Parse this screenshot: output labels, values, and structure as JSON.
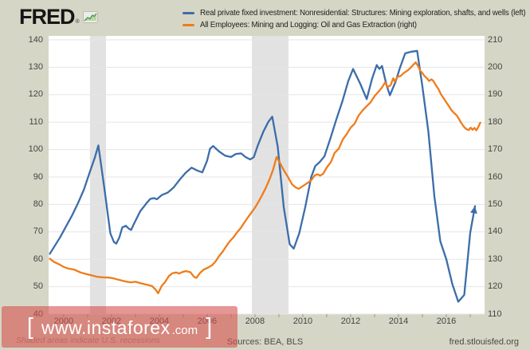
{
  "header": {
    "logo": "FRED",
    "registered": "®"
  },
  "legend": {
    "items": [
      {
        "label": "Real private fixed investment: Nonresidential: Structures: Mining exploration, shafts, and wells (left)",
        "color": "#3c6da9"
      },
      {
        "label": "All Employees: Mining and Logging: Oil and Gas Extraction (right)",
        "color": "#ef7c1b"
      }
    ]
  },
  "footer": {
    "recession_note": "Shaded areas indicate U.S. recessions",
    "sources": "Sources: BEA, BLS",
    "site": "fred.stlouisfed.org"
  },
  "watermark": {
    "open_bracket": "[",
    "text": "www.instaforex",
    "suffix": ".com",
    "close_bracket": "]"
  },
  "colors": {
    "background": "#d6d6c6",
    "plot_background": "#ffffff",
    "recession_band": "#e2e2e2",
    "gridline": "#e5e5e5",
    "tick_mark": "#999999",
    "axis_text": "#444444",
    "series_blue": "#3c6da9",
    "series_orange": "#ef7c1b",
    "watermark_bg": "rgba(213,82,78,0.60)",
    "watermark_text": "#ffffff"
  },
  "chart_data": {
    "type": "line",
    "title": "",
    "x_axis": {
      "min": 1999.37,
      "max": 2017.6,
      "label_years": [
        2000,
        2002,
        2004,
        2006,
        2008,
        2010,
        2012,
        2014,
        2016
      ],
      "tick_years": [
        2000,
        2001,
        2002,
        2003,
        2004,
        2005,
        2006,
        2007,
        2008,
        2009,
        2010,
        2011,
        2012,
        2013,
        2014,
        2015,
        2016,
        2017
      ]
    },
    "left_axis": {
      "min": 40,
      "max": 140,
      "step": 10,
      "ticks": [
        140,
        130,
        120,
        110,
        100,
        90,
        80,
        70,
        60,
        50,
        40
      ]
    },
    "right_axis": {
      "min": 110,
      "max": 210,
      "step": 10,
      "ticks": [
        210,
        200,
        190,
        180,
        170,
        160,
        150,
        140,
        130,
        120,
        110
      ]
    },
    "recession_bands": [
      [
        2001.1,
        2001.77
      ],
      [
        2007.87,
        2009.4
      ]
    ],
    "grid": true,
    "legend_position": "top",
    "series": [
      {
        "name": "Real private fixed investment: Nonresidential: Structures: Mining exploration, shafts, and wells",
        "axis": "left",
        "color": "#3c6da9",
        "arrow_end": true,
        "points": [
          [
            1999.42,
            62.0
          ],
          [
            1999.6,
            64.5
          ],
          [
            1999.85,
            68.0
          ],
          [
            2000.1,
            72.0
          ],
          [
            2000.35,
            76.0
          ],
          [
            2000.6,
            80.5
          ],
          [
            2000.85,
            85.5
          ],
          [
            2001.1,
            92.0
          ],
          [
            2001.3,
            97.0
          ],
          [
            2001.45,
            101.5
          ],
          [
            2001.7,
            86.0
          ],
          [
            2001.95,
            69.5
          ],
          [
            2002.1,
            66.3
          ],
          [
            2002.2,
            65.7
          ],
          [
            2002.33,
            68.0
          ],
          [
            2002.45,
            71.6
          ],
          [
            2002.6,
            72.2
          ],
          [
            2002.72,
            71.2
          ],
          [
            2002.82,
            70.7
          ],
          [
            2002.95,
            73.1
          ],
          [
            2003.2,
            77.5
          ],
          [
            2003.45,
            80.3
          ],
          [
            2003.62,
            82.0
          ],
          [
            2003.78,
            82.3
          ],
          [
            2003.9,
            81.9
          ],
          [
            2004.1,
            83.4
          ],
          [
            2004.35,
            84.3
          ],
          [
            2004.6,
            86.2
          ],
          [
            2004.85,
            89.0
          ],
          [
            2005.1,
            91.5
          ],
          [
            2005.35,
            93.4
          ],
          [
            2005.6,
            92.3
          ],
          [
            2005.8,
            91.7
          ],
          [
            2006.0,
            96.0
          ],
          [
            2006.12,
            100.3
          ],
          [
            2006.25,
            101.3
          ],
          [
            2006.5,
            99.3
          ],
          [
            2006.75,
            97.8
          ],
          [
            2007.0,
            97.3
          ],
          [
            2007.2,
            98.4
          ],
          [
            2007.42,
            98.6
          ],
          [
            2007.6,
            97.3
          ],
          [
            2007.8,
            96.4
          ],
          [
            2007.95,
            97.2
          ],
          [
            2008.12,
            101.5
          ],
          [
            2008.35,
            106.5
          ],
          [
            2008.55,
            110.0
          ],
          [
            2008.72,
            112.0
          ],
          [
            2008.95,
            101.0
          ],
          [
            2009.2,
            79.0
          ],
          [
            2009.45,
            65.5
          ],
          [
            2009.62,
            63.9
          ],
          [
            2009.85,
            69.5
          ],
          [
            2010.1,
            79.0
          ],
          [
            2010.35,
            90.0
          ],
          [
            2010.52,
            94.0
          ],
          [
            2010.7,
            95.4
          ],
          [
            2010.9,
            97.5
          ],
          [
            2011.15,
            104.0
          ],
          [
            2011.4,
            111.0
          ],
          [
            2011.65,
            117.5
          ],
          [
            2011.9,
            125.0
          ],
          [
            2012.1,
            129.4
          ],
          [
            2012.4,
            124.0
          ],
          [
            2012.67,
            118.4
          ],
          [
            2012.9,
            126.0
          ],
          [
            2013.09,
            130.8
          ],
          [
            2013.2,
            129.4
          ],
          [
            2013.31,
            130.5
          ],
          [
            2013.5,
            123.5
          ],
          [
            2013.64,
            119.8
          ],
          [
            2013.88,
            124.8
          ],
          [
            2014.06,
            129.8
          ],
          [
            2014.28,
            135.1
          ],
          [
            2014.55,
            135.7
          ],
          [
            2014.78,
            136.0
          ],
          [
            2015.0,
            123.0
          ],
          [
            2015.25,
            106.5
          ],
          [
            2015.5,
            83.0
          ],
          [
            2015.75,
            66.5
          ],
          [
            2016.0,
            60.0
          ],
          [
            2016.25,
            51.0
          ],
          [
            2016.5,
            44.5
          ],
          [
            2016.75,
            47.0
          ],
          [
            2017.0,
            69.7
          ],
          [
            2017.2,
            79.4
          ]
        ]
      },
      {
        "name": "All Employees: Mining and Logging: Oil and Gas Extraction",
        "axis": "right",
        "color": "#ef7c1b",
        "arrow_end": false,
        "points": [
          [
            1999.42,
            130.2
          ],
          [
            1999.6,
            129.0
          ],
          [
            1999.8,
            128.2
          ],
          [
            2000.0,
            127.2
          ],
          [
            2000.2,
            126.6
          ],
          [
            2000.45,
            126.2
          ],
          [
            2000.7,
            125.2
          ],
          [
            2000.9,
            124.7
          ],
          [
            2001.15,
            124.2
          ],
          [
            2001.4,
            123.6
          ],
          [
            2001.65,
            123.4
          ],
          [
            2001.9,
            123.3
          ],
          [
            2002.1,
            123.0
          ],
          [
            2002.35,
            122.4
          ],
          [
            2002.6,
            121.9
          ],
          [
            2002.8,
            121.6
          ],
          [
            2003.0,
            121.8
          ],
          [
            2003.25,
            121.2
          ],
          [
            2003.5,
            120.7
          ],
          [
            2003.7,
            120.2
          ],
          [
            2003.85,
            118.9
          ],
          [
            2003.95,
            117.6
          ],
          [
            2004.1,
            120.3
          ],
          [
            2004.25,
            121.8
          ],
          [
            2004.4,
            123.9
          ],
          [
            2004.55,
            124.9
          ],
          [
            2004.7,
            125.2
          ],
          [
            2004.82,
            124.8
          ],
          [
            2004.95,
            125.3
          ],
          [
            2005.1,
            125.7
          ],
          [
            2005.3,
            125.3
          ],
          [
            2005.45,
            123.6
          ],
          [
            2005.55,
            123.2
          ],
          [
            2005.7,
            125.0
          ],
          [
            2005.85,
            126.2
          ],
          [
            2006.0,
            126.8
          ],
          [
            2006.2,
            127.8
          ],
          [
            2006.35,
            129.2
          ],
          [
            2006.5,
            131.2
          ],
          [
            2006.65,
            132.8
          ],
          [
            2006.8,
            134.8
          ],
          [
            2006.95,
            136.6
          ],
          [
            2007.1,
            138.0
          ],
          [
            2007.25,
            139.8
          ],
          [
            2007.4,
            141.3
          ],
          [
            2007.55,
            143.3
          ],
          [
            2007.7,
            145.2
          ],
          [
            2007.85,
            147.0
          ],
          [
            2008.0,
            148.8
          ],
          [
            2008.15,
            151.0
          ],
          [
            2008.3,
            153.4
          ],
          [
            2008.45,
            156.0
          ],
          [
            2008.6,
            159.0
          ],
          [
            2008.75,
            162.5
          ],
          [
            2008.9,
            167.3
          ],
          [
            2009.05,
            165.0
          ],
          [
            2009.2,
            162.5
          ],
          [
            2009.35,
            160.4
          ],
          [
            2009.55,
            157.3
          ],
          [
            2009.7,
            156.2
          ],
          [
            2009.83,
            155.7
          ],
          [
            2010.0,
            156.7
          ],
          [
            2010.17,
            157.7
          ],
          [
            2010.33,
            158.6
          ],
          [
            2010.5,
            160.6
          ],
          [
            2010.62,
            161.0
          ],
          [
            2010.72,
            160.5
          ],
          [
            2010.85,
            161.2
          ],
          [
            2011.0,
            163.5
          ],
          [
            2011.17,
            165.4
          ],
          [
            2011.33,
            168.8
          ],
          [
            2011.5,
            170.3
          ],
          [
            2011.67,
            173.7
          ],
          [
            2011.83,
            175.6
          ],
          [
            2012.0,
            178.0
          ],
          [
            2012.17,
            179.5
          ],
          [
            2012.33,
            182.4
          ],
          [
            2012.5,
            184.3
          ],
          [
            2012.67,
            185.8
          ],
          [
            2012.83,
            187.2
          ],
          [
            2013.0,
            189.5
          ],
          [
            2013.15,
            191.0
          ],
          [
            2013.3,
            192.5
          ],
          [
            2013.44,
            194.5
          ],
          [
            2013.55,
            192.8
          ],
          [
            2013.67,
            193.5
          ],
          [
            2013.78,
            196.0
          ],
          [
            2013.85,
            194.8
          ],
          [
            2013.94,
            196.4
          ],
          [
            2014.1,
            196.9
          ],
          [
            2014.22,
            197.9
          ],
          [
            2014.39,
            198.9
          ],
          [
            2014.5,
            199.8
          ],
          [
            2014.61,
            200.8
          ],
          [
            2014.72,
            201.8
          ],
          [
            2014.83,
            200.3
          ],
          [
            2014.9,
            198.9
          ],
          [
            2015.0,
            197.9
          ],
          [
            2015.08,
            196.9
          ],
          [
            2015.2,
            195.9
          ],
          [
            2015.28,
            195.0
          ],
          [
            2015.38,
            195.6
          ],
          [
            2015.46,
            195.0
          ],
          [
            2015.56,
            193.5
          ],
          [
            2015.67,
            192.1
          ],
          [
            2015.78,
            190.1
          ],
          [
            2015.89,
            188.7
          ],
          [
            2016.0,
            187.2
          ],
          [
            2016.11,
            185.8
          ],
          [
            2016.22,
            184.3
          ],
          [
            2016.33,
            183.3
          ],
          [
            2016.44,
            182.4
          ],
          [
            2016.52,
            181.3
          ],
          [
            2016.61,
            179.9
          ],
          [
            2016.72,
            178.5
          ],
          [
            2016.83,
            177.5
          ],
          [
            2016.94,
            177.1
          ],
          [
            2017.02,
            178.0
          ],
          [
            2017.1,
            177.2
          ],
          [
            2017.18,
            177.9
          ],
          [
            2017.26,
            177.0
          ],
          [
            2017.34,
            178.3
          ],
          [
            2017.42,
            179.8
          ]
        ]
      }
    ]
  }
}
